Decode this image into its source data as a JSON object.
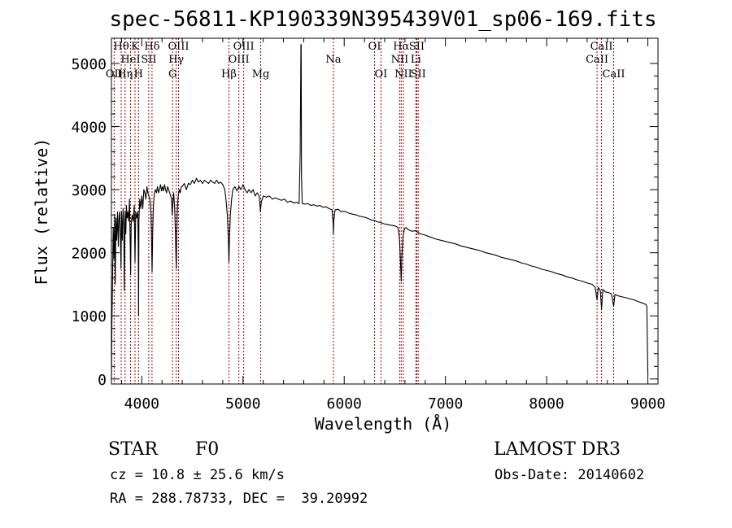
{
  "chart_data": {
    "type": "line",
    "title": "spec-56811-KP190339N395439V01_sp06-169.fits",
    "xlabel": "Wavelength (Å)",
    "ylabel": "Flux (relative)",
    "xlim": [
      3700,
      9100
    ],
    "ylim": [
      -80,
      5400
    ],
    "x_ticks": [
      4000,
      5000,
      6000,
      7000,
      8000,
      9000
    ],
    "y_ticks": [
      0,
      1000,
      2000,
      3000,
      4000,
      5000
    ],
    "series": [
      {
        "name": "flux",
        "points": [
          [
            3700,
            0
          ],
          [
            3705,
            900
          ],
          [
            3712,
            1700
          ],
          [
            3718,
            2400
          ],
          [
            3725,
            1900
          ],
          [
            3732,
            2600
          ],
          [
            3738,
            1500
          ],
          [
            3745,
            2550
          ],
          [
            3752,
            2200
          ],
          [
            3760,
            2650
          ],
          [
            3768,
            2100
          ],
          [
            3775,
            2550
          ],
          [
            3780,
            2650
          ],
          [
            3788,
            2300
          ],
          [
            3795,
            1750
          ],
          [
            3800,
            2650
          ],
          [
            3808,
            2200
          ],
          [
            3815,
            2700
          ],
          [
            3822,
            2450
          ],
          [
            3828,
            1400
          ],
          [
            3835,
            2650
          ],
          [
            3842,
            2300
          ],
          [
            3848,
            2750
          ],
          [
            3855,
            2550
          ],
          [
            3862,
            2650
          ],
          [
            3870,
            2500
          ],
          [
            3878,
            2850
          ],
          [
            3886,
            2150
          ],
          [
            3890,
            1650
          ],
          [
            3895,
            2450
          ],
          [
            3905,
            2600
          ],
          [
            3915,
            2500
          ],
          [
            3925,
            2750
          ],
          [
            3933,
            1850
          ],
          [
            3940,
            2650
          ],
          [
            3950,
            2550
          ],
          [
            3960,
            2650
          ],
          [
            3965,
            2100
          ],
          [
            3968,
            1000
          ],
          [
            3972,
            2500
          ],
          [
            3980,
            2850
          ],
          [
            3990,
            2700
          ],
          [
            4000,
            2900
          ],
          [
            4010,
            2700
          ],
          [
            4020,
            3000
          ],
          [
            4030,
            2950
          ],
          [
            4040,
            2850
          ],
          [
            4050,
            3050
          ],
          [
            4060,
            2950
          ],
          [
            4070,
            2900
          ],
          [
            4080,
            2850
          ],
          [
            4090,
            2650
          ],
          [
            4095,
            2300
          ],
          [
            4102,
            1700
          ],
          [
            4108,
            2350
          ],
          [
            4115,
            2750
          ],
          [
            4125,
            2950
          ],
          [
            4135,
            3000
          ],
          [
            4145,
            2950
          ],
          [
            4155,
            3050
          ],
          [
            4165,
            2950
          ],
          [
            4175,
            3000
          ],
          [
            4185,
            3080
          ],
          [
            4195,
            2980
          ],
          [
            4205,
            3050
          ],
          [
            4215,
            2980
          ],
          [
            4225,
            3080
          ],
          [
            4235,
            3000
          ],
          [
            4245,
            2950
          ],
          [
            4255,
            3050
          ],
          [
            4265,
            3000
          ],
          [
            4275,
            2950
          ],
          [
            4285,
            2900
          ],
          [
            4295,
            2850
          ],
          [
            4300,
            2600
          ],
          [
            4305,
            2750
          ],
          [
            4315,
            2950
          ],
          [
            4325,
            2700
          ],
          [
            4332,
            2350
          ],
          [
            4338,
            1900
          ],
          [
            4341,
            1750
          ],
          [
            4345,
            2250
          ],
          [
            4352,
            2700
          ],
          [
            4360,
            2900
          ],
          [
            4370,
            3000
          ],
          [
            4380,
            2950
          ],
          [
            4390,
            3050
          ],
          [
            4400,
            3050
          ],
          [
            4420,
            3100
          ],
          [
            4440,
            3000
          ],
          [
            4460,
            3100
          ],
          [
            4480,
            3080
          ],
          [
            4500,
            3150
          ],
          [
            4520,
            3100
          ],
          [
            4540,
            3180
          ],
          [
            4560,
            3120
          ],
          [
            4580,
            3150
          ],
          [
            4600,
            3100
          ],
          [
            4620,
            3150
          ],
          [
            4640,
            3120
          ],
          [
            4660,
            3100
          ],
          [
            4680,
            3150
          ],
          [
            4700,
            3120
          ],
          [
            4720,
            3100
          ],
          [
            4740,
            3150
          ],
          [
            4760,
            3100
          ],
          [
            4780,
            3120
          ],
          [
            4800,
            3080
          ],
          [
            4820,
            3000
          ],
          [
            4835,
            2800
          ],
          [
            4845,
            2600
          ],
          [
            4855,
            2250
          ],
          [
            4861,
            1850
          ],
          [
            4866,
            2200
          ],
          [
            4875,
            2600
          ],
          [
            4888,
            2850
          ],
          [
            4900,
            3000
          ],
          [
            4920,
            3050
          ],
          [
            4940,
            2980
          ],
          [
            4960,
            3050
          ],
          [
            4980,
            3000
          ],
          [
            5000,
            3080
          ],
          [
            5020,
            3000
          ],
          [
            5040,
            2950
          ],
          [
            5060,
            3000
          ],
          [
            5080,
            2950
          ],
          [
            5100,
            3000
          ],
          [
            5120,
            2900
          ],
          [
            5140,
            2950
          ],
          [
            5160,
            2900
          ],
          [
            5172,
            2650
          ],
          [
            5180,
            2800
          ],
          [
            5200,
            2900
          ],
          [
            5230,
            2880
          ],
          [
            5260,
            2900
          ],
          [
            5290,
            2850
          ],
          [
            5320,
            2870
          ],
          [
            5350,
            2850
          ],
          [
            5380,
            2830
          ],
          [
            5410,
            2850
          ],
          [
            5440,
            2800
          ],
          [
            5470,
            2820
          ],
          [
            5500,
            2790
          ],
          [
            5530,
            2800
          ],
          [
            5555,
            2780
          ],
          [
            5565,
            3600
          ],
          [
            5572,
            5300
          ],
          [
            5575,
            5300
          ],
          [
            5578,
            3200
          ],
          [
            5585,
            2780
          ],
          [
            5610,
            2770
          ],
          [
            5640,
            2780
          ],
          [
            5670,
            2750
          ],
          [
            5700,
            2760
          ],
          [
            5730,
            2740
          ],
          [
            5760,
            2750
          ],
          [
            5790,
            2720
          ],
          [
            5820,
            2730
          ],
          [
            5850,
            2700
          ],
          [
            5880,
            2680
          ],
          [
            5890,
            2480
          ],
          [
            5893,
            2300
          ],
          [
            5896,
            2500
          ],
          [
            5910,
            2680
          ],
          [
            5940,
            2690
          ],
          [
            5970,
            2650
          ],
          [
            6000,
            2660
          ],
          [
            6030,
            2640
          ],
          [
            6060,
            2620
          ],
          [
            6090,
            2610
          ],
          [
            6120,
            2600
          ],
          [
            6150,
            2580
          ],
          [
            6180,
            2570
          ],
          [
            6210,
            2560
          ],
          [
            6240,
            2540
          ],
          [
            6270,
            2520
          ],
          [
            6300,
            2510
          ],
          [
            6330,
            2490
          ],
          [
            6360,
            2480
          ],
          [
            6390,
            2460
          ],
          [
            6420,
            2450
          ],
          [
            6450,
            2440
          ],
          [
            6480,
            2430
          ],
          [
            6510,
            2420
          ],
          [
            6530,
            2400
          ],
          [
            6545,
            2250
          ],
          [
            6555,
            1900
          ],
          [
            6563,
            1550
          ],
          [
            6570,
            1950
          ],
          [
            6580,
            2250
          ],
          [
            6595,
            2380
          ],
          [
            6610,
            2400
          ],
          [
            6640,
            2360
          ],
          [
            6670,
            2340
          ],
          [
            6700,
            2350
          ],
          [
            6750,
            2300
          ],
          [
            6800,
            2280
          ],
          [
            6850,
            2250
          ],
          [
            6900,
            2220
          ],
          [
            6950,
            2200
          ],
          [
            7000,
            2180
          ],
          [
            7050,
            2160
          ],
          [
            7100,
            2140
          ],
          [
            7150,
            2110
          ],
          [
            7200,
            2090
          ],
          [
            7250,
            2070
          ],
          [
            7300,
            2050
          ],
          [
            7350,
            2030
          ],
          [
            7400,
            2000
          ],
          [
            7450,
            1980
          ],
          [
            7500,
            1960
          ],
          [
            7550,
            1930
          ],
          [
            7600,
            1910
          ],
          [
            7650,
            1890
          ],
          [
            7700,
            1870
          ],
          [
            7750,
            1840
          ],
          [
            7800,
            1820
          ],
          [
            7850,
            1790
          ],
          [
            7900,
            1770
          ],
          [
            7950,
            1740
          ],
          [
            8000,
            1720
          ],
          [
            8050,
            1700
          ],
          [
            8100,
            1670
          ],
          [
            8150,
            1650
          ],
          [
            8200,
            1620
          ],
          [
            8250,
            1600
          ],
          [
            8300,
            1570
          ],
          [
            8350,
            1550
          ],
          [
            8400,
            1520
          ],
          [
            8450,
            1500
          ],
          [
            8480,
            1450
          ],
          [
            8498,
            1250
          ],
          [
            8510,
            1450
          ],
          [
            8530,
            1400
          ],
          [
            8542,
            1100
          ],
          [
            8555,
            1420
          ],
          [
            8580,
            1380
          ],
          [
            8610,
            1370
          ],
          [
            8640,
            1350
          ],
          [
            8662,
            1150
          ],
          [
            8675,
            1340
          ],
          [
            8700,
            1320
          ],
          [
            8750,
            1300
          ],
          [
            8800,
            1280
          ],
          [
            8850,
            1260
          ],
          [
            8900,
            1230
          ],
          [
            8950,
            1200
          ],
          [
            8980,
            1180
          ],
          [
            8990,
            1150
          ],
          [
            8995,
            600
          ],
          [
            9000,
            50
          ]
        ]
      }
    ],
    "spectral_lines": [
      {
        "label": "Hθ",
        "wavelength": 3797,
        "row": 1
      },
      {
        "label": "OII",
        "wavelength": 3727,
        "row": 3
      },
      {
        "label": "Hη",
        "wavelength": 3835,
        "row": 3
      },
      {
        "label": "HeI",
        "wavelength": 3889,
        "row": 2
      },
      {
        "label": "K",
        "wavelength": 3933,
        "row": 1
      },
      {
        "label": "H",
        "wavelength": 3968,
        "row": 3
      },
      {
        "label": "SII",
        "wavelength": 4069,
        "row": 2
      },
      {
        "label": "Hδ",
        "wavelength": 4101,
        "row": 1
      },
      {
        "label": "OIII",
        "wavelength": 4363,
        "row": 1
      },
      {
        "label": "Hγ",
        "wavelength": 4340,
        "row": 2
      },
      {
        "label": "G",
        "wavelength": 4304,
        "row": 3
      },
      {
        "label": "Hβ",
        "wavelength": 4861,
        "row": 3
      },
      {
        "label": "OIII",
        "wavelength": 5007,
        "row": 1
      },
      {
        "label": "OIII",
        "wavelength": 4959,
        "row": 2
      },
      {
        "label": "Mg",
        "wavelength": 5175,
        "row": 3
      },
      {
        "label": "Na",
        "wavelength": 5893,
        "row": 2
      },
      {
        "label": "OI",
        "wavelength": 6300,
        "row": 1
      },
      {
        "label": "OI",
        "wavelength": 6363,
        "row": 3
      },
      {
        "label": "Hα",
        "wavelength": 6563,
        "row": 1
      },
      {
        "label": "NII",
        "wavelength": 6548,
        "row": 2
      },
      {
        "label": "NII",
        "wavelength": 6584,
        "row": 3
      },
      {
        "label": "SII",
        "wavelength": 6717,
        "row": 1
      },
      {
        "label": "Li",
        "wavelength": 6708,
        "row": 2
      },
      {
        "label": "SII",
        "wavelength": 6731,
        "row": 3
      },
      {
        "label": "CaII",
        "wavelength": 8542,
        "row": 1
      },
      {
        "label": "CaII",
        "wavelength": 8498,
        "row": 2
      },
      {
        "label": "CaII",
        "wavelength": 8662,
        "row": 3
      }
    ]
  },
  "info": {
    "class_label": "STAR",
    "subclass": "F0",
    "survey": "LAMOST DR3",
    "redshift": "cz = 10.8 ± 25.6 km/s",
    "obs_date": "Obs-Date: 20140602",
    "coords": "RA = 288.78733, DEC =  39.20992"
  }
}
